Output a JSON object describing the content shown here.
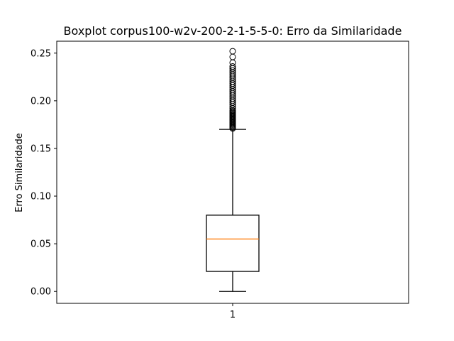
{
  "chart_data": {
    "type": "boxplot",
    "title": "Boxplot corpus100-w2v-200-2-1-5-5-0: Erro da Similaridade",
    "xlabel": "",
    "ylabel": "Erro Similaridade",
    "ylim": [
      -0.0125,
      0.2625
    ],
    "yticks": [
      0.0,
      0.05,
      0.1,
      0.15,
      0.2,
      0.25
    ],
    "ytick_labels": [
      "0.00",
      "0.05",
      "0.10",
      "0.15",
      "0.20",
      "0.25"
    ],
    "categories": [
      "1"
    ],
    "boxes": [
      {
        "category": "1",
        "whisker_low": 0.0,
        "q1": 0.021,
        "median": 0.055,
        "q3": 0.08,
        "whisker_high": 0.17,
        "outliers": [
          0.171,
          0.172,
          0.173,
          0.174,
          0.175,
          0.176,
          0.177,
          0.178,
          0.179,
          0.18,
          0.181,
          0.182,
          0.183,
          0.184,
          0.185,
          0.186,
          0.187,
          0.188,
          0.189,
          0.19,
          0.192,
          0.194,
          0.196,
          0.198,
          0.2,
          0.202,
          0.204,
          0.206,
          0.208,
          0.21,
          0.212,
          0.214,
          0.216,
          0.218,
          0.22,
          0.222,
          0.224,
          0.226,
          0.228,
          0.23,
          0.232,
          0.234,
          0.236,
          0.24,
          0.246,
          0.252
        ]
      }
    ],
    "grid": false,
    "colors": {
      "box": "#000000",
      "median": "#ff7f0e",
      "outlier_edge": "#000000"
    }
  }
}
